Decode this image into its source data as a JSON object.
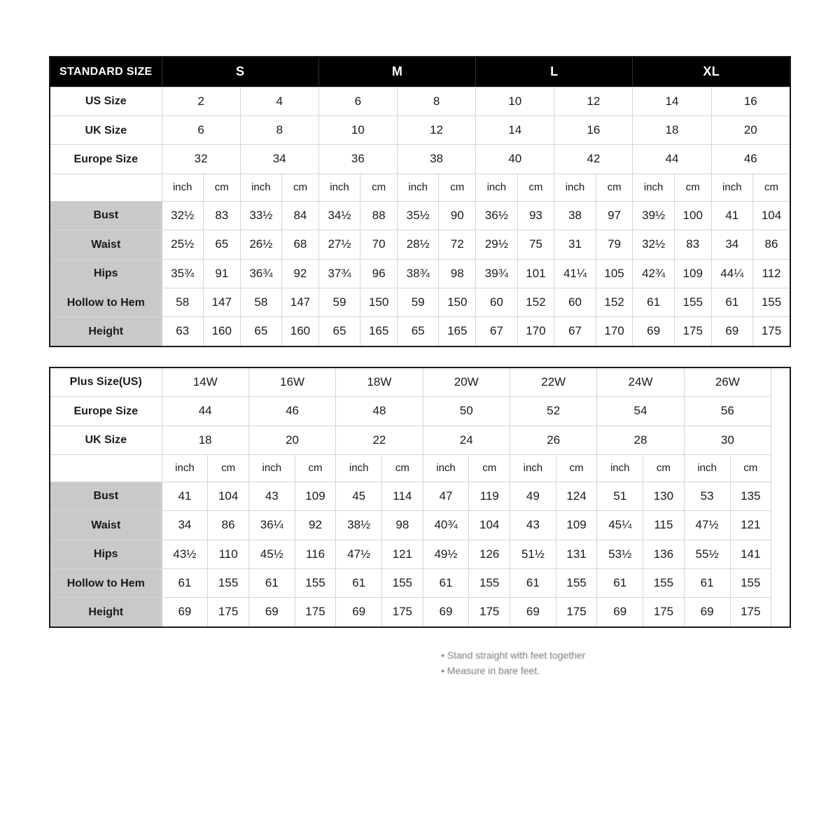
{
  "standard": {
    "header_label": "STANDARD SIZE",
    "size_groups": [
      "S",
      "M",
      "L",
      "XL"
    ],
    "rows_top": [
      {
        "label": "US Size",
        "vals": [
          "2",
          "4",
          "6",
          "8",
          "10",
          "12",
          "14",
          "16"
        ]
      },
      {
        "label": "UK Size",
        "vals": [
          "6",
          "8",
          "10",
          "12",
          "14",
          "16",
          "18",
          "20"
        ]
      },
      {
        "label": "Europe Size",
        "vals": [
          "32",
          "34",
          "36",
          "38",
          "40",
          "42",
          "44",
          "46"
        ]
      }
    ],
    "unit_pair": [
      "inch",
      "cm"
    ],
    "measure_rows": [
      {
        "label": "Bust",
        "cells": [
          "32½",
          "83",
          "33½",
          "84",
          "34½",
          "88",
          "35½",
          "90",
          "36½",
          "93",
          "38",
          "97",
          "39½",
          "100",
          "41",
          "104"
        ]
      },
      {
        "label": "Waist",
        "cells": [
          "25½",
          "65",
          "26½",
          "68",
          "27½",
          "70",
          "28½",
          "72",
          "29½",
          "75",
          "31",
          "79",
          "32½",
          "83",
          "34",
          "86"
        ]
      },
      {
        "label": "Hips",
        "cells": [
          "35¾",
          "91",
          "36¾",
          "92",
          "37¾",
          "96",
          "38¾",
          "98",
          "39¾",
          "101",
          "41¼",
          "105",
          "42¾",
          "109",
          "44¼",
          "112"
        ]
      },
      {
        "label": "Hollow to Hem",
        "cells": [
          "58",
          "147",
          "58",
          "147",
          "59",
          "150",
          "59",
          "150",
          "60",
          "152",
          "60",
          "152",
          "61",
          "155",
          "61",
          "155"
        ]
      },
      {
        "label": "Height",
        "cells": [
          "63",
          "160",
          "65",
          "160",
          "65",
          "165",
          "65",
          "165",
          "67",
          "170",
          "67",
          "170",
          "69",
          "175",
          "69",
          "175"
        ]
      }
    ]
  },
  "plus": {
    "rows_top": [
      {
        "label": "Plus Size(US)",
        "vals": [
          "14W",
          "16W",
          "18W",
          "20W",
          "22W",
          "24W",
          "26W"
        ]
      },
      {
        "label": "Europe Size",
        "vals": [
          "44",
          "46",
          "48",
          "50",
          "52",
          "54",
          "56"
        ]
      },
      {
        "label": "UK Size",
        "vals": [
          "18",
          "20",
          "22",
          "24",
          "26",
          "28",
          "30"
        ]
      }
    ],
    "unit_pair": [
      "inch",
      "cm"
    ],
    "measure_rows": [
      {
        "label": "Bust",
        "cells": [
          "41",
          "104",
          "43",
          "109",
          "45",
          "114",
          "47",
          "119",
          "49",
          "124",
          "51",
          "130",
          "53",
          "135"
        ]
      },
      {
        "label": "Waist",
        "cells": [
          "34",
          "86",
          "36¼",
          "92",
          "38½",
          "98",
          "40¾",
          "104",
          "43",
          "109",
          "45¼",
          "115",
          "47½",
          "121"
        ]
      },
      {
        "label": "Hips",
        "cells": [
          "43½",
          "110",
          "45½",
          "116",
          "47½",
          "121",
          "49½",
          "126",
          "51½",
          "131",
          "53½",
          "136",
          "55½",
          "141"
        ]
      },
      {
        "label": "Hollow to Hem",
        "cells": [
          "61",
          "155",
          "61",
          "155",
          "61",
          "155",
          "61",
          "155",
          "61",
          "155",
          "61",
          "155",
          "61",
          "155"
        ]
      },
      {
        "label": "Height",
        "cells": [
          "69",
          "175",
          "69",
          "175",
          "69",
          "175",
          "69",
          "175",
          "69",
          "175",
          "69",
          "175",
          "69",
          "175"
        ]
      }
    ]
  },
  "footnotes": [
    "Stand straight with feet together",
    "Measure in bare feet."
  ],
  "style": {
    "header_bg": "#000000",
    "header_fg": "#ffffff",
    "shade_bg": "#c9c9c9",
    "border_color": "#d5d5d5",
    "outer_border": "#1a1a1a",
    "page_bg": "#ffffff",
    "font_family": "Arial, Helvetica, sans-serif"
  }
}
